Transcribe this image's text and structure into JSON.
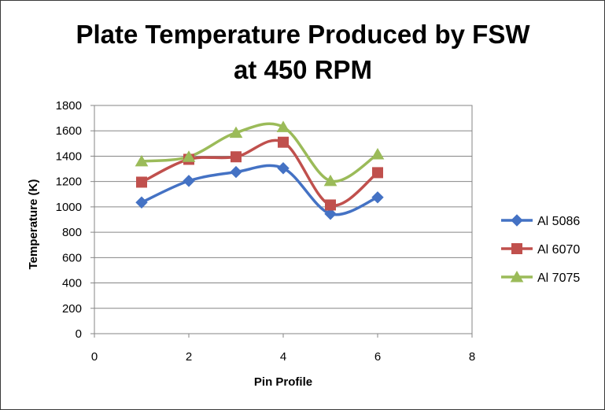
{
  "chart_data": {
    "type": "line",
    "title_lines": [
      "Plate Temperature Produced by FSW",
      "at 450 RPM"
    ],
    "xlabel": "Pin Profile",
    "ylabel": "Temperature (K)",
    "xlim": [
      0,
      8
    ],
    "ylim": [
      0,
      1800
    ],
    "x_ticks": [
      0,
      2,
      4,
      6,
      8
    ],
    "y_ticks": [
      0,
      200,
      400,
      600,
      800,
      1000,
      1200,
      1400,
      1600,
      1800
    ],
    "grid": "horizontal",
    "legend_position": "right",
    "x": [
      1,
      2,
      3,
      4,
      5,
      6
    ],
    "series": [
      {
        "name": "Al 5086",
        "values": [
          1035,
          1205,
          1275,
          1305,
          945,
          1075
        ],
        "color": "#4472c4",
        "marker": "diamond"
      },
      {
        "name": "Al 6070",
        "values": [
          1195,
          1375,
          1395,
          1510,
          1015,
          1270
        ],
        "color": "#c0504d",
        "marker": "square"
      },
      {
        "name": "Al 7075",
        "values": [
          1360,
          1395,
          1585,
          1630,
          1205,
          1415
        ],
        "color": "#9bbb59",
        "marker": "triangle"
      }
    ]
  }
}
